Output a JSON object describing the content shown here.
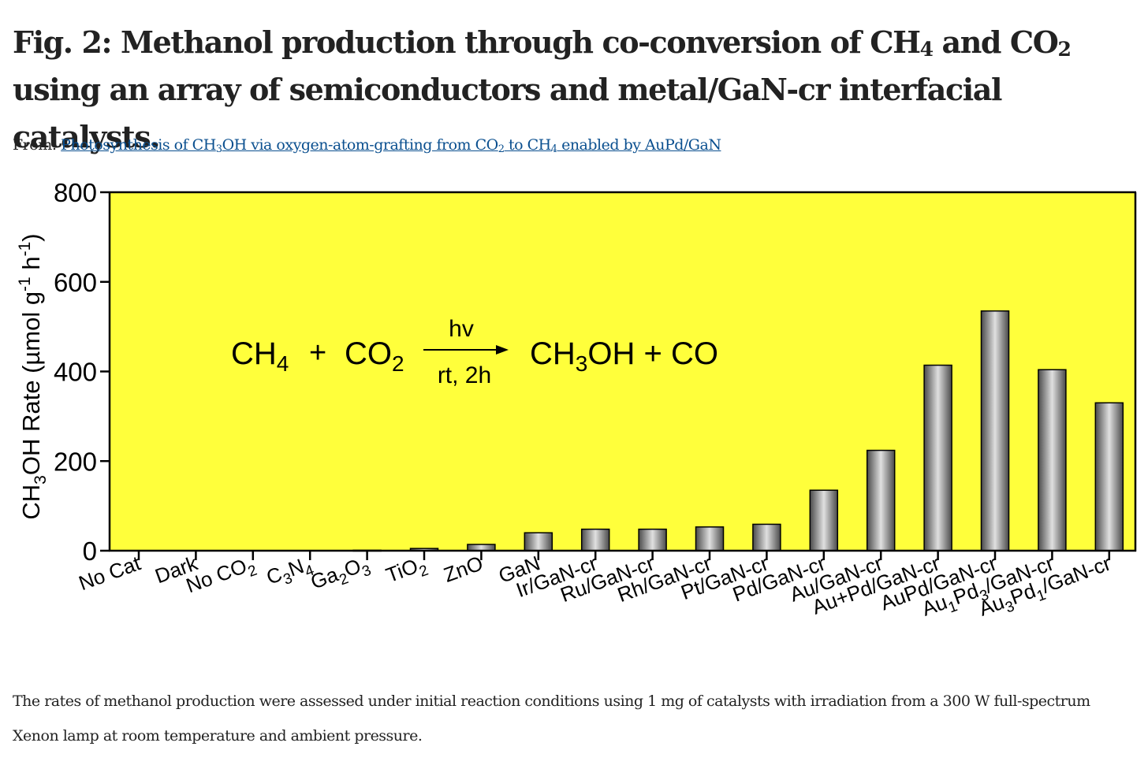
{
  "figure": {
    "title_parts": [
      "Fig. 2: Methanol production through co-conversion of CH",
      "4",
      " and CO",
      "2",
      " using an array of semiconductors and metal/GaN-cr interfacial catalysts."
    ],
    "from_label": "From:",
    "source_link_parts": [
      "Photosynthesis of CH",
      "3",
      "OH via oxygen-atom-grafting from CO",
      "2",
      " to CH",
      "4",
      " enabled by AuPd/GaN"
    ],
    "caption": "The rates of methanol production were assessed under initial reaction conditions using 1 mg of catalysts with irradiation from a 300 W full-spectrum Xenon lamp at room temperature and ambient pressure."
  },
  "reaction": {
    "reactant1": "CH",
    "reactant1_sub": "4",
    "plus": "+",
    "reactant2": "CO",
    "reactant2_sub": "2",
    "above_arrow": "hv",
    "below_arrow": "rt, 2h",
    "product_a": "CH",
    "product_a_sub": "3",
    "product_b": "OH + CO"
  },
  "chart_data": {
    "type": "bar",
    "ylabel_parts": [
      "CH",
      "3",
      "OH Rate (µmol g",
      "-1",
      " h",
      "-1",
      ")"
    ],
    "ylim": [
      0,
      800
    ],
    "yticks": [
      0,
      200,
      400,
      600,
      800
    ],
    "background_color": "#ffff3b",
    "bar_color": "#9a9a9a",
    "categories": [
      {
        "parts": [
          "No Cat"
        ]
      },
      {
        "parts": [
          "Dark"
        ]
      },
      {
        "parts": [
          "No CO",
          "2"
        ]
      },
      {
        "parts": [
          "C",
          "3",
          "N",
          "4"
        ]
      },
      {
        "parts": [
          "Ga",
          "2",
          "O",
          "3"
        ]
      },
      {
        "parts": [
          "TiO",
          "2"
        ]
      },
      {
        "parts": [
          "ZnO"
        ]
      },
      {
        "parts": [
          "GaN"
        ]
      },
      {
        "parts": [
          "Ir/GaN-cr"
        ]
      },
      {
        "parts": [
          "Ru/GaN-cr"
        ]
      },
      {
        "parts": [
          "Rh/GaN-cr"
        ]
      },
      {
        "parts": [
          "Pt/GaN-cr"
        ]
      },
      {
        "parts": [
          "Pd/GaN-cr"
        ]
      },
      {
        "parts": [
          "Au/GaN-cr"
        ]
      },
      {
        "parts": [
          "Au+Pd/GaN-cr"
        ]
      },
      {
        "parts": [
          "AuPd/GaN-cr"
        ]
      },
      {
        "parts": [
          "Au",
          "1",
          "Pd",
          "3",
          "/GaN-cr"
        ]
      },
      {
        "parts": [
          "Au",
          "3",
          "Pd",
          "1",
          "/GaN-cr"
        ]
      }
    ],
    "values": [
      0,
      0,
      0,
      0,
      1,
      5,
      14,
      40,
      48,
      48,
      53,
      59,
      135,
      224,
      414,
      535,
      404,
      330
    ]
  }
}
